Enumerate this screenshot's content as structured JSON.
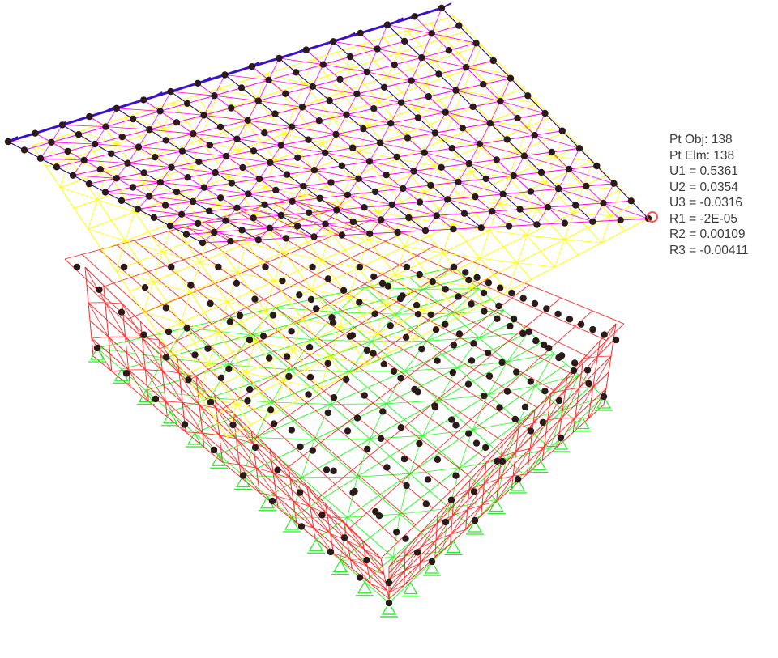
{
  "point_info": {
    "rows": [
      {
        "label": "Pt Obj:",
        "value": "138"
      },
      {
        "label": "Pt Elm:",
        "value": "138"
      },
      {
        "label": "U1 = ",
        "value": "0.5361"
      },
      {
        "label": "U2 = ",
        "value": "0.0354"
      },
      {
        "label": "U3 = ",
        "value": "-0.0316"
      },
      {
        "label": "R1 = ",
        "value": "-2E-05"
      },
      {
        "label": "R2 = ",
        "value": "0.00109"
      },
      {
        "label": "R3 = ",
        "value": "-0.00411"
      }
    ]
  },
  "colors": {
    "background": "#ffffff",
    "roof_top_members": "#3a10c8",
    "roof_rafters": "#ff00ff",
    "ridge_members": "#1a1a80",
    "upper_frame": "#ffff00",
    "lower_frame": "#ff2a2a",
    "base_members": "#22ff22",
    "support_symbol": "#22ee22",
    "joint": "#2a1a1a",
    "highlight_joint": "#ff5555",
    "tooltip_text": "#3b3b3b"
  }
}
